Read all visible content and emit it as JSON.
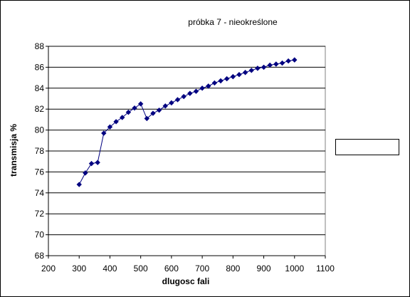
{
  "chart_data": {
    "type": "scatter",
    "title": "próbka 7 - nieokreślone",
    "xlabel": "dlugosc fali",
    "ylabel": "transmisja %",
    "xlim": [
      200,
      1100
    ],
    "ylim": [
      68,
      88
    ],
    "xticks": [
      200,
      300,
      400,
      500,
      600,
      700,
      800,
      900,
      1000,
      1100
    ],
    "yticks": [
      68,
      70,
      72,
      74,
      76,
      78,
      80,
      82,
      84,
      86,
      88
    ],
    "grid": "horizontal",
    "legend": "right",
    "series": [
      {
        "color": "#000080",
        "x": [
          300,
          320,
          340,
          360,
          380,
          400,
          420,
          440,
          460,
          480,
          500,
          520,
          540,
          560,
          580,
          600,
          620,
          640,
          660,
          680,
          700,
          720,
          740,
          760,
          780,
          800,
          820,
          840,
          860,
          880,
          900,
          920,
          940,
          960,
          980,
          1000
        ],
        "y": [
          74.8,
          75.9,
          76.8,
          76.9,
          79.7,
          80.3,
          80.8,
          81.2,
          81.7,
          82.1,
          82.5,
          81.1,
          81.6,
          81.9,
          82.3,
          82.6,
          82.9,
          83.2,
          83.5,
          83.7,
          84.0,
          84.2,
          84.5,
          84.7,
          84.9,
          85.1,
          85.3,
          85.5,
          85.7,
          85.9,
          86.0,
          86.2,
          86.3,
          86.4,
          86.6,
          86.7
        ]
      }
    ]
  }
}
